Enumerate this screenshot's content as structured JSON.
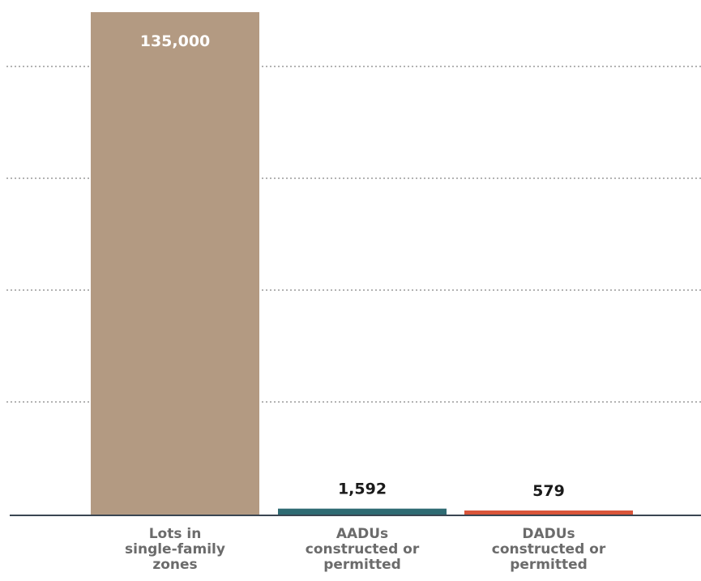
{
  "chart_data": {
    "type": "bar",
    "categories": [
      [
        "Lots in",
        "single-family",
        "zones"
      ],
      [
        "AADUs",
        "constructed or",
        "permitted"
      ],
      [
        "DADUs",
        "constructed or",
        "permitted"
      ]
    ],
    "values": [
      135000,
      1592,
      579
    ],
    "data_labels": [
      "135,000",
      "1,592",
      "579"
    ],
    "bar_colors": [
      "#b39a82",
      "#2f6b73",
      "#d9553a"
    ],
    "grid": true,
    "gridline_color": "#9a9a9a",
    "axis_color": "#3a4652"
  }
}
